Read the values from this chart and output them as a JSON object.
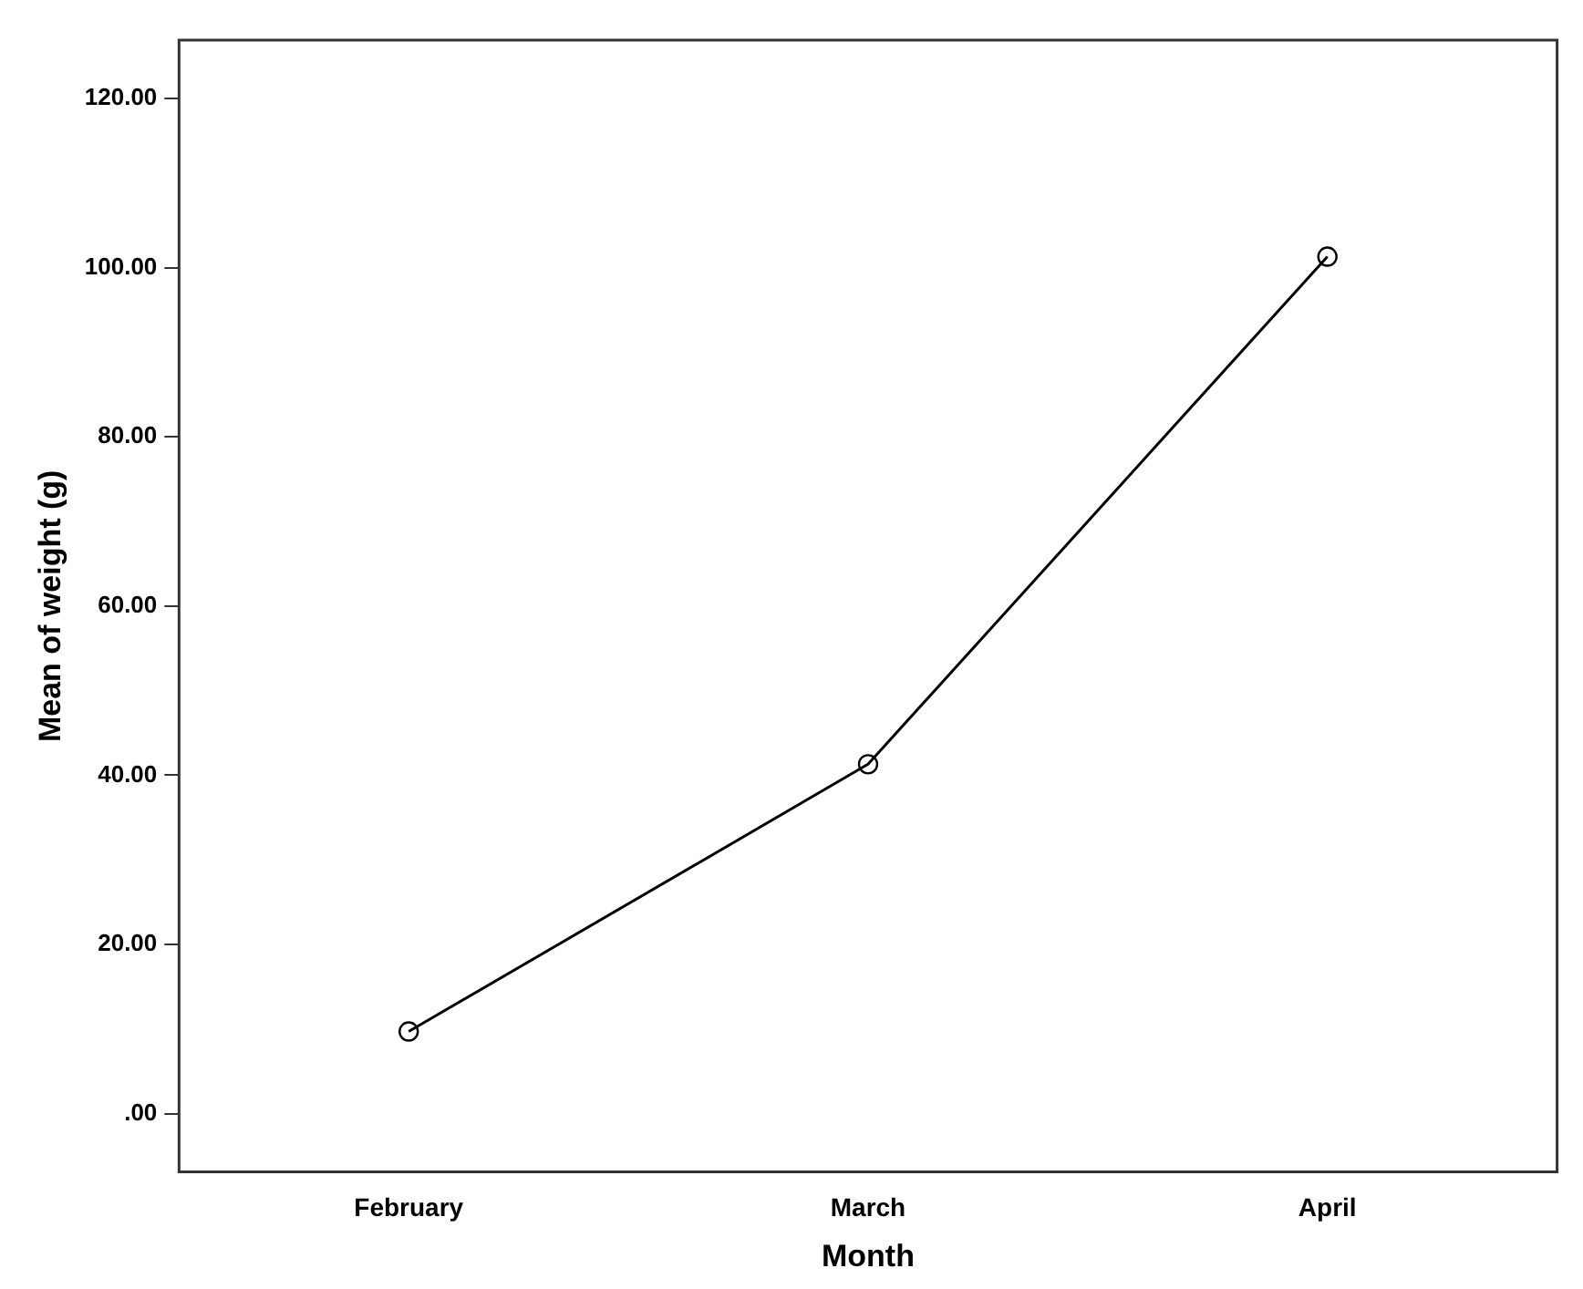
{
  "chart_data": {
    "type": "line",
    "xlabel": "Month",
    "ylabel": "Mean of weight (g)",
    "categories": [
      "February",
      "March",
      "April"
    ],
    "series": [
      {
        "color": "#000000",
        "values": [
          9.7,
          41.3,
          101.3
        ]
      }
    ],
    "ylim": [
      -6.9,
      126.9
    ],
    "yticks": [
      {
        "value": 0,
        "label": ".00"
      },
      {
        "value": 20,
        "label": "20.00"
      },
      {
        "value": 40,
        "label": "40.00"
      },
      {
        "value": 60,
        "label": "60.00"
      },
      {
        "value": 80,
        "label": "80.00"
      },
      {
        "value": 100,
        "label": "100.00"
      },
      {
        "value": 120,
        "label": "120.00"
      }
    ],
    "grid": false,
    "legend": false,
    "marker": "circle",
    "line_style": "solid"
  }
}
